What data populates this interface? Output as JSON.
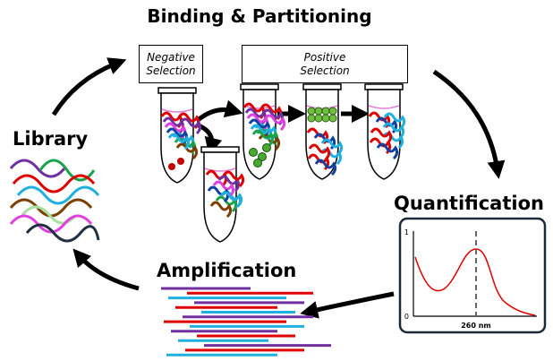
{
  "title": "Binding & Partitioning",
  "boxes": {
    "negative_selection": "Negative Selection",
    "positive_selection": "Positive Selection"
  },
  "stages": {
    "library": "Library",
    "quantification": "Quantification",
    "amplification": "Amplification"
  },
  "spectrum": {
    "y_top_label": "1",
    "y_bottom_label": "0",
    "x_label": "260 nm"
  }
}
